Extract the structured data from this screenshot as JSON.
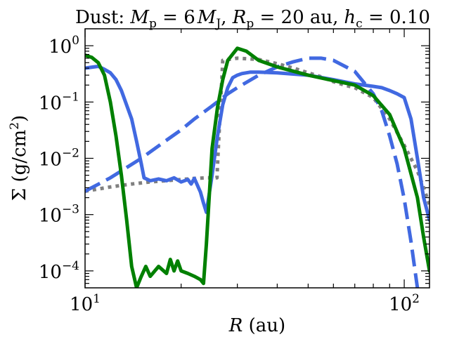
{
  "chart_data": {
    "type": "line",
    "title": {
      "prefix": "Dust: ",
      "mp_sym": "M",
      "mp_sub": "p",
      "mp_eq": " = 6",
      "mj_sym": "M",
      "mj_sub": "J",
      "rp_sym": "R",
      "rp_sub": "p",
      "rp_eq": " = 20 au,",
      "hc_sym": "h",
      "hc_sub": "c",
      "hc_eq": " = 0.10"
    },
    "xlabel": {
      "sym": "R",
      "unit": " (au)"
    },
    "ylabel": {
      "text": "Σ (g/cm",
      "exp": "2",
      "close": ")"
    },
    "xscale": "log",
    "yscale": "log",
    "xlim": [
      10,
      120
    ],
    "ylim": [
      5e-05,
      2
    ],
    "x_ticks": [
      {
        "value": 10,
        "base": "10",
        "exp": "1"
      },
      {
        "value": 100,
        "base": "10",
        "exp": "2"
      }
    ],
    "y_ticks": [
      {
        "value": 1,
        "base": "10",
        "exp": "0"
      },
      {
        "value": 0.1,
        "base": "10",
        "exp": "−1"
      },
      {
        "value": 0.01,
        "base": "10",
        "exp": "−2"
      },
      {
        "value": 0.001,
        "base": "10",
        "exp": "−3"
      },
      {
        "value": 0.0001,
        "base": "10",
        "exp": "−4"
      }
    ],
    "grid": false,
    "legend": "none",
    "series": [
      {
        "name": "dotted-reference",
        "color": "#808080",
        "style": "dotted",
        "x": [
          10,
          12,
          14,
          16,
          18,
          20,
          22,
          24,
          25.9,
          26.1,
          27,
          30,
          35,
          40,
          45,
          50,
          55,
          60,
          65,
          70,
          80,
          90,
          100,
          110,
          115,
          120
        ],
        "y": [
          0.0026,
          0.0031,
          0.0035,
          0.0038,
          0.004,
          0.0042,
          0.0044,
          0.0045,
          0.0045,
          0.012,
          0.55,
          0.6,
          0.57,
          0.48,
          0.4,
          0.33,
          0.28,
          0.23,
          0.2,
          0.18,
          0.12,
          0.05,
          0.017,
          0.006,
          0.003,
          0.0015
        ]
      },
      {
        "name": "dashed-blue",
        "color": "#4169e1",
        "style": "dashed",
        "x": [
          10,
          12,
          15,
          18,
          20,
          22,
          25,
          28,
          30,
          35,
          40,
          45,
          50,
          55,
          60,
          70,
          80,
          85,
          90,
          95,
          100,
          105,
          110
        ],
        "y": [
          0.0026,
          0.0045,
          0.01,
          0.021,
          0.032,
          0.05,
          0.085,
          0.14,
          0.18,
          0.3,
          0.42,
          0.52,
          0.6,
          0.6,
          0.55,
          0.35,
          0.14,
          0.07,
          0.025,
          0.008,
          0.0019,
          0.00033,
          5e-05
        ]
      },
      {
        "name": "solid-blue",
        "color": "#4169e1",
        "style": "solid",
        "x": [
          10,
          11,
          11.5,
          12,
          12.5,
          13,
          14,
          14.5,
          15,
          15.3,
          16,
          17,
          18,
          19,
          20,
          21,
          21.5,
          22,
          23,
          23.5,
          24,
          25,
          26,
          27,
          28,
          29,
          30,
          31,
          33,
          35,
          40,
          50,
          60,
          70,
          80,
          85,
          90,
          95,
          100,
          105,
          110,
          115,
          120
        ],
        "y": [
          0.4,
          0.43,
          0.38,
          0.33,
          0.25,
          0.16,
          0.05,
          0.02,
          0.008,
          0.0045,
          0.004,
          0.0043,
          0.004,
          0.0045,
          0.0038,
          0.0042,
          0.0035,
          0.0044,
          0.0025,
          0.0016,
          0.0011,
          0.005,
          0.025,
          0.09,
          0.18,
          0.27,
          0.3,
          0.32,
          0.34,
          0.34,
          0.33,
          0.3,
          0.25,
          0.21,
          0.19,
          0.18,
          0.16,
          0.14,
          0.12,
          0.05,
          0.01,
          0.002,
          0.0008
        ]
      },
      {
        "name": "solid-green",
        "color": "#008000",
        "style": "solid",
        "x": [
          10,
          10.5,
          11,
          11.5,
          12,
          12.5,
          13,
          13.5,
          14,
          14.5,
          15,
          15.5,
          16,
          17,
          18,
          18.5,
          19,
          19.5,
          20,
          21,
          22,
          23,
          23.5,
          24,
          25,
          26,
          27,
          28,
          30,
          32,
          35,
          40,
          50,
          60,
          70,
          80,
          90,
          100,
          110,
          115,
          120
        ],
        "y": [
          0.68,
          0.62,
          0.5,
          0.3,
          0.1,
          0.025,
          0.005,
          0.0008,
          0.00012,
          5e-05,
          8e-05,
          0.00012,
          8e-05,
          0.00012,
          9e-05,
          0.00016,
          0.0001,
          0.00015,
          0.0001,
          9e-05,
          8e-05,
          7e-05,
          6e-05,
          0.0003,
          0.015,
          0.08,
          0.25,
          0.55,
          0.9,
          0.8,
          0.55,
          0.42,
          0.3,
          0.24,
          0.2,
          0.13,
          0.06,
          0.015,
          0.002,
          0.0004,
          0.0001
        ]
      }
    ]
  }
}
